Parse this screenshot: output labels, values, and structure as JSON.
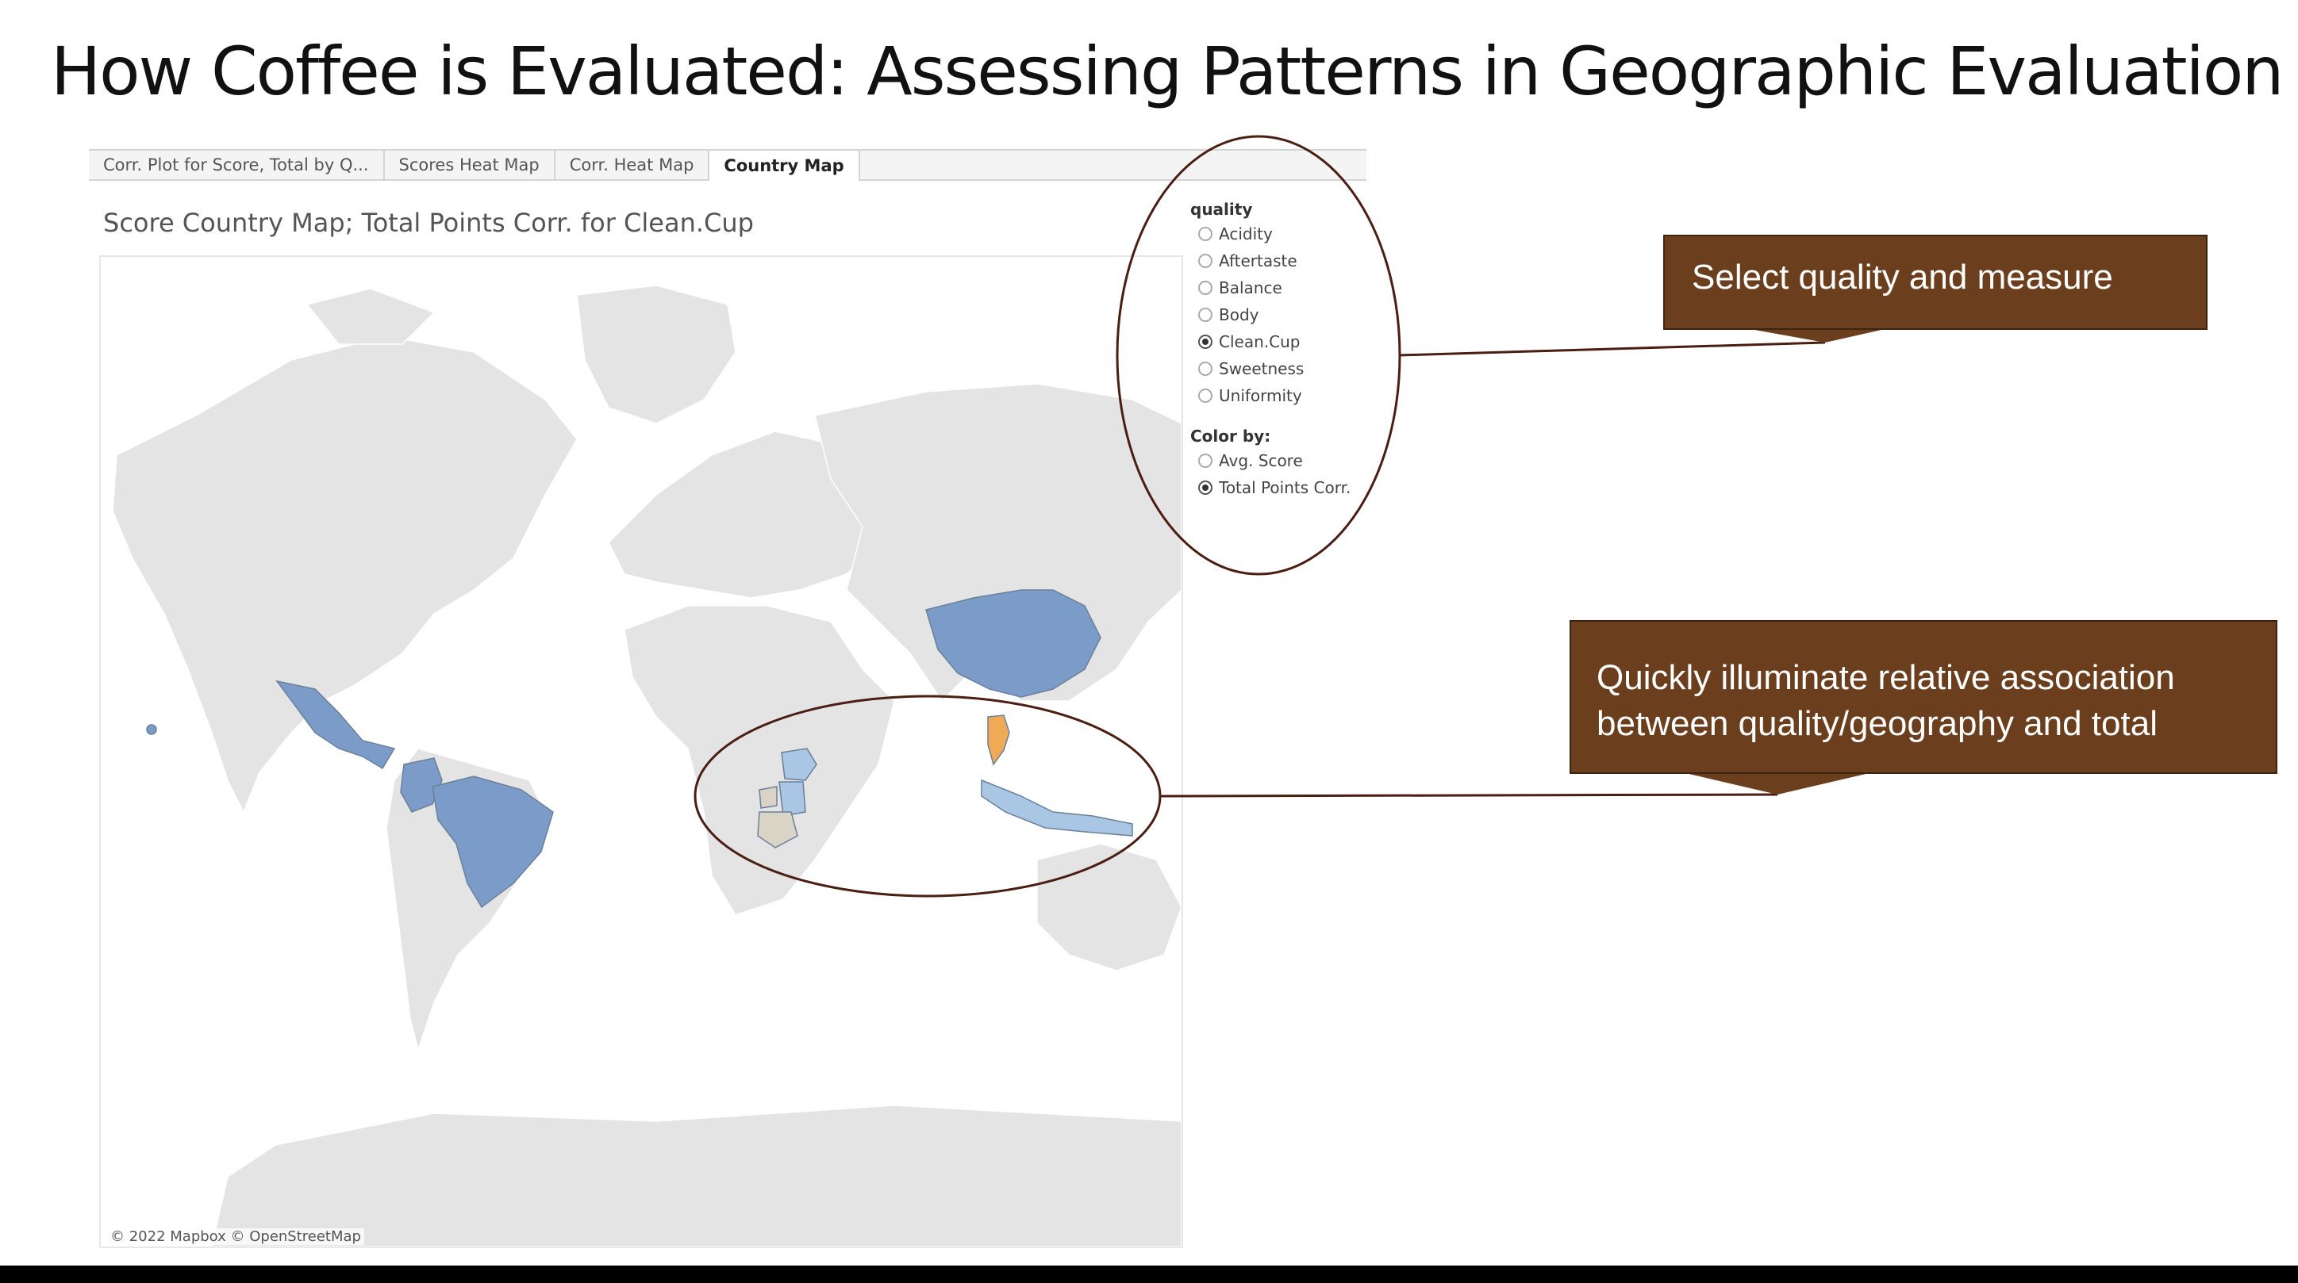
{
  "slide": {
    "title": "How Coffee is Evaluated: Assessing Patterns in Geographic Evaluation"
  },
  "tabs": [
    {
      "label": "Corr. Plot for Score, Total by Q..."
    },
    {
      "label": "Scores Heat Map"
    },
    {
      "label": "Corr. Heat Map"
    },
    {
      "label": "Country Map",
      "active": true
    }
  ],
  "viz": {
    "title": "Score Country Map; Total Points Corr. for Clean.Cup",
    "attribution": "© 2022 Mapbox  © OpenStreetMap"
  },
  "filters": {
    "quality": {
      "heading": "quality",
      "options": [
        "Acidity",
        "Aftertaste",
        "Balance",
        "Body",
        "Clean.Cup",
        "Sweetness",
        "Uniformity"
      ],
      "selected": "Clean.Cup"
    },
    "color_by": {
      "heading": "Color by:",
      "options": [
        "Avg. Score",
        "Total Points Corr."
      ],
      "selected": "Total Points Corr."
    }
  },
  "callouts": {
    "select": {
      "lines": [
        "Select quality and measure"
      ]
    },
    "illuminate": {
      "lines": [
        "Quickly illuminate relative association",
        "between quality/geography and total"
      ]
    }
  },
  "colors": {
    "background_land": "#e4e4e4",
    "country_blue": "#7b9cc9",
    "country_light_blue": "#a9c6e4",
    "country_orange": "#f0aa55",
    "country_tan": "#d9d4c5",
    "callout_brown": "#6b3f1e",
    "annotation_line": "#4a1e12"
  }
}
